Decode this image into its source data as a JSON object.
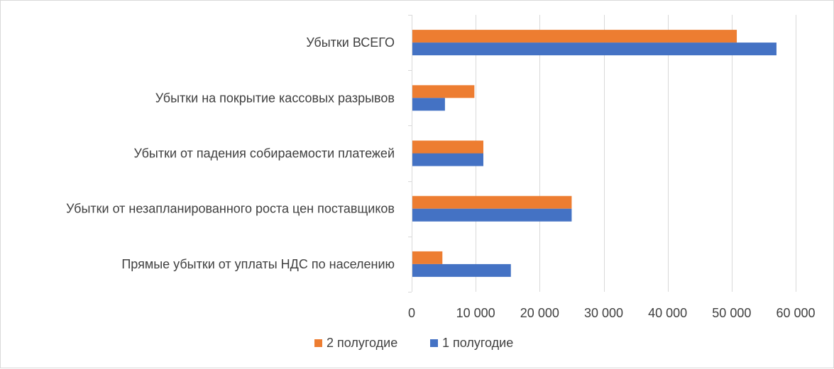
{
  "chart_data": {
    "type": "bar",
    "orientation": "horizontal",
    "categories": [
      "Прямые убытки от уплаты НДС по населению",
      "Убытки от незапланированного роста цен поставщиков",
      "Убытки от падения собираемости платежей",
      "Убытки на покрытие кассовых разрывов",
      "Убытки ВСЕГО"
    ],
    "series": [
      {
        "name": "1 полугодие",
        "color": "#4472c4",
        "values": [
          15500,
          25000,
          11200,
          5200,
          57000
        ]
      },
      {
        "name": "2 полугодие",
        "color": "#ed7d31",
        "values": [
          4800,
          25000,
          11200,
          9800,
          50800
        ]
      }
    ],
    "xlim": [
      0,
      60000
    ],
    "xticks": [
      0,
      10000,
      20000,
      30000,
      40000,
      50000,
      60000
    ],
    "xtick_labels": [
      "0",
      "10 000",
      "20 000",
      "30 000",
      "40 000",
      "50 000",
      "60 000"
    ],
    "title": "",
    "xlabel": "",
    "ylabel": "",
    "grid": true,
    "legend_position": "bottom",
    "legend_order": [
      "2 полугодие",
      "1 полугодие"
    ]
  }
}
